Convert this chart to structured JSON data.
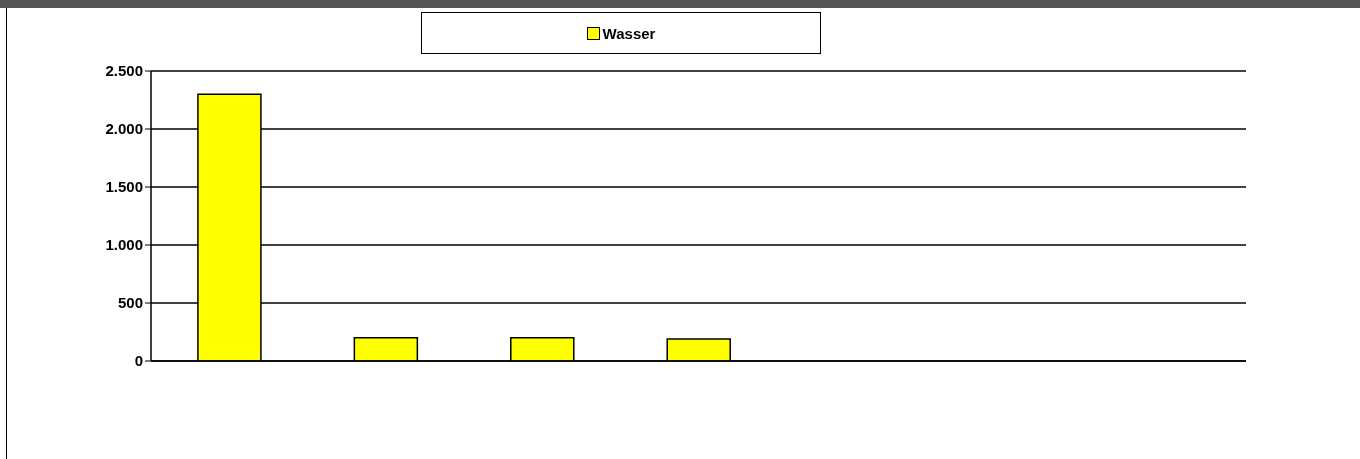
{
  "chart_data": {
    "type": "bar",
    "categories": [
      null,
      null,
      null,
      null,
      null,
      null,
      null
    ],
    "series": [
      {
        "name": "Wasser",
        "color": "#ffff00",
        "values": [
          2300,
          200,
          200,
          190,
          null,
          null,
          null
        ]
      }
    ],
    "ylim": [
      0,
      2500
    ],
    "yticks": [
      0,
      500,
      {
        "value": 1000,
        "label": "1.000"
      },
      {
        "value": 1500,
        "label": "1.500"
      },
      {
        "value": 2000,
        "label": "2.000"
      },
      {
        "value": 2500,
        "label": "2.500"
      }
    ],
    "grid": "y",
    "legend": "top"
  }
}
